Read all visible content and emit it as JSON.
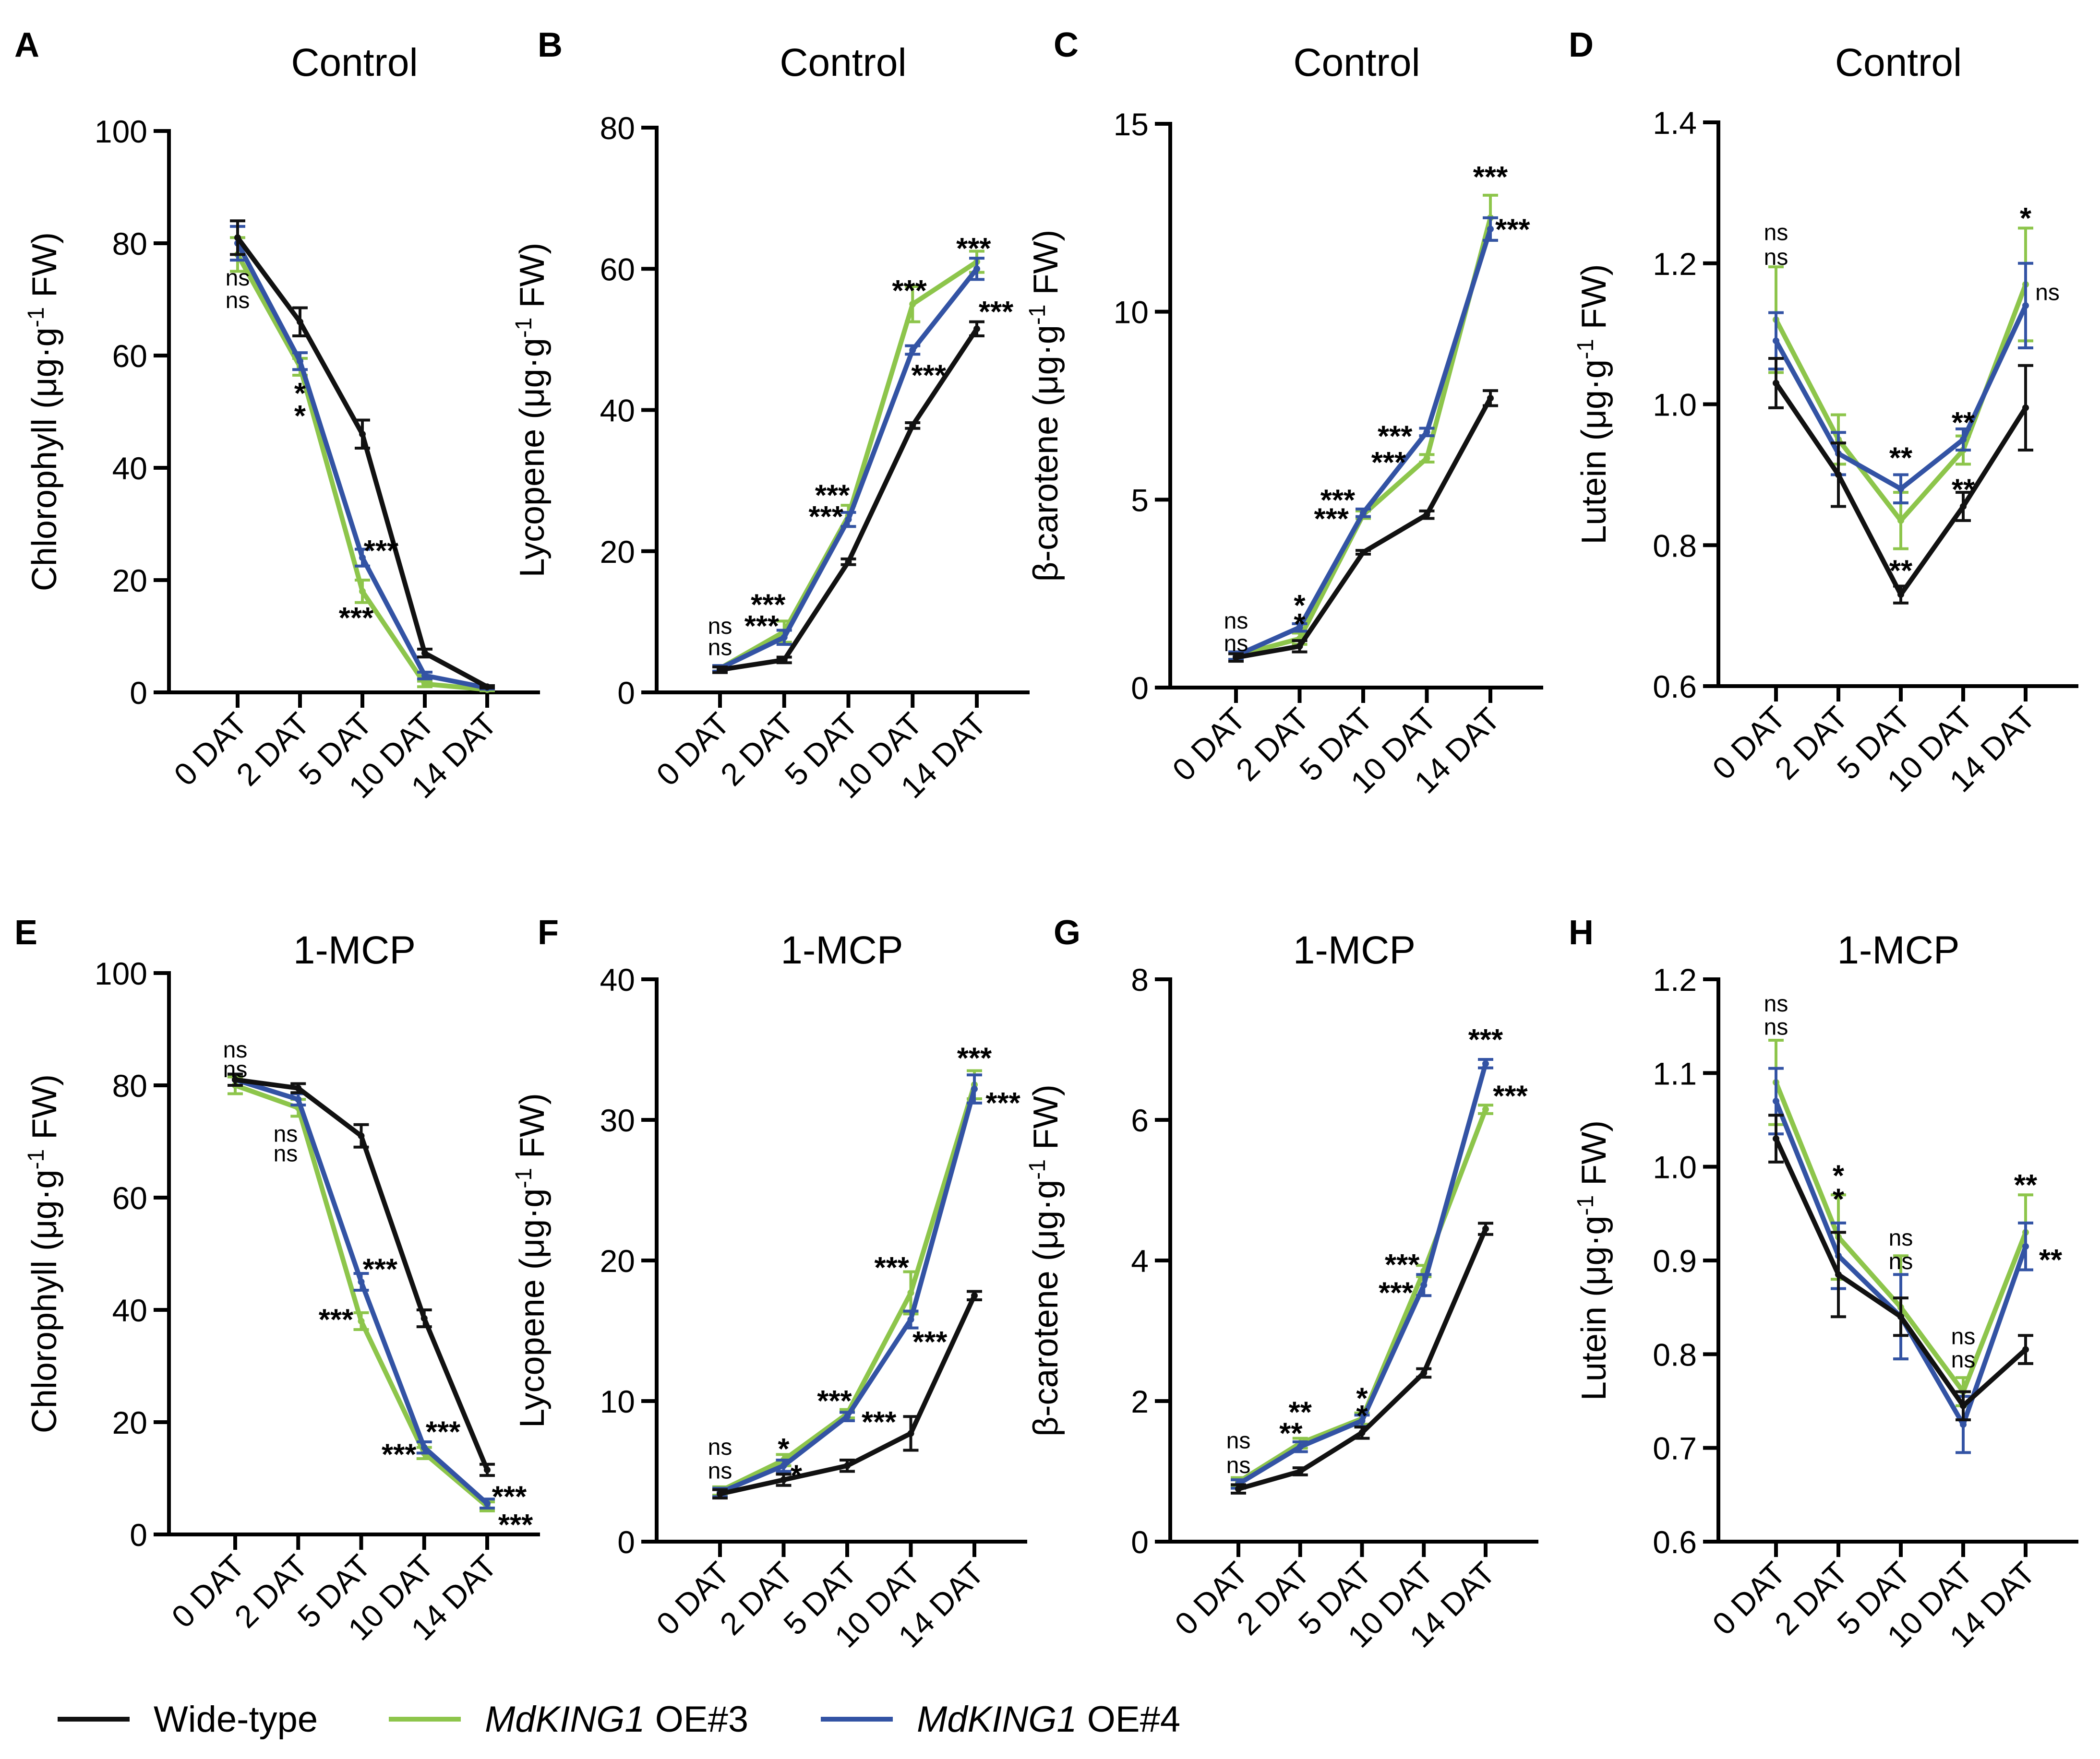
{
  "colors": {
    "wt": "#111111",
    "oe3": "#8dc54b",
    "oe4": "#3353a4"
  },
  "legend": {
    "wt": "Wide-type",
    "oe3_gene": "MdKING1",
    "oe3_suffix": " OE#3",
    "oe4_gene": "MdKING1",
    "oe4_suffix": " OE#4"
  },
  "chart_data": [
    {
      "panel": "A",
      "type": "line",
      "title": "Control",
      "ylabel": "Chlorophyll (μg·g-1 FW)",
      "categories": [
        "0 DAT",
        "2 DAT",
        "5 DAT",
        "10 DAT",
        "14 DAT"
      ],
      "ylim": [
        0,
        100
      ],
      "yticks": [
        0,
        20,
        40,
        60,
        80,
        100
      ],
      "series": [
        {
          "name": "Wide-type",
          "values": [
            81,
            66,
            46,
            7,
            1
          ],
          "err": [
            3,
            2.5,
            2.5,
            0.7,
            0.2
          ]
        },
        {
          "name": "MdKING1 OE#3",
          "values": [
            78,
            58,
            18,
            1.5,
            0.5
          ],
          "err": [
            3,
            1.5,
            2,
            0.5,
            0.2
          ]
        },
        {
          "name": "MdKING1 OE#4",
          "values": [
            80,
            59,
            24,
            3,
            0.8
          ],
          "err": [
            3,
            1.5,
            1.5,
            0.6,
            0.2
          ]
        }
      ],
      "annotations": [
        {
          "text": "ns",
          "x": 0,
          "y": 74
        },
        {
          "text": "ns",
          "x": 0,
          "y": 70
        },
        {
          "text": "*",
          "x": 1,
          "y": 54
        },
        {
          "text": "*",
          "x": 1,
          "y": 50
        },
        {
          "text": "***",
          "x": 2.3,
          "y": 26
        },
        {
          "text": "***",
          "x": 1.9,
          "y": 14
        }
      ]
    },
    {
      "panel": "B",
      "type": "line",
      "title": "Control",
      "ylabel": "Lycopene (μg·g-1 FW)",
      "categories": [
        "0 DAT",
        "2 DAT",
        "5 DAT",
        "10 DAT",
        "14 DAT"
      ],
      "ylim": [
        0,
        80
      ],
      "yticks": [
        0,
        20,
        40,
        60,
        80
      ],
      "series": [
        {
          "name": "Wide-type",
          "values": [
            3.2,
            4.6,
            18.5,
            37.8,
            51.5
          ],
          "err": [
            0.4,
            0.4,
            0.4,
            0.4,
            1
          ]
        },
        {
          "name": "MdKING1 OE#3",
          "values": [
            3.4,
            8.6,
            25,
            55,
            61
          ],
          "err": [
            0.4,
            1.5,
            1.5,
            2.5,
            1.5
          ]
        },
        {
          "name": "MdKING1 OE#4",
          "values": [
            3.4,
            7.8,
            24.5,
            48.5,
            60
          ],
          "err": [
            0.4,
            1,
            1,
            0.6,
            1.5
          ]
        }
      ],
      "annotations": [
        {
          "text": "ns",
          "x": 0,
          "y": 9.5
        },
        {
          "text": "ns",
          "x": 0,
          "y": 6.5
        },
        {
          "text": "***",
          "x": 0.75,
          "y": 13
        },
        {
          "text": "***",
          "x": 0.65,
          "y": 10
        },
        {
          "text": "***",
          "x": 1.75,
          "y": 28.5
        },
        {
          "text": "***",
          "x": 1.65,
          "y": 25.5
        },
        {
          "text": "***",
          "x": 2.95,
          "y": 57.5
        },
        {
          "text": "***",
          "x": 3.25,
          "y": 45.5
        },
        {
          "text": "***",
          "x": 3.95,
          "y": 63.5
        },
        {
          "text": "***",
          "x": 4.3,
          "y": 54.5
        }
      ]
    },
    {
      "panel": "C",
      "type": "line",
      "title": "Control",
      "ylabel": "β-carotene (μg·g-1 FW)",
      "categories": [
        "0 DAT",
        "2 DAT",
        "5 DAT",
        "10 DAT",
        "14 DAT"
      ],
      "ylim": [
        0,
        15
      ],
      "yticks": [
        0,
        5,
        10,
        15
      ],
      "series": [
        {
          "name": "Wide-type",
          "values": [
            0.8,
            1.1,
            3.6,
            4.6,
            7.7
          ],
          "err": [
            0.1,
            0.15,
            0.05,
            0.1,
            0.2
          ]
        },
        {
          "name": "MdKING1 OE#3",
          "values": [
            0.85,
            1.3,
            4.6,
            6.1,
            12.5
          ],
          "err": [
            0.1,
            0.15,
            0.1,
            0.1,
            0.6
          ]
        },
        {
          "name": "MdKING1 OE#4",
          "values": [
            0.85,
            1.6,
            4.65,
            6.8,
            12.2
          ],
          "err": [
            0.1,
            0.1,
            0.1,
            0.1,
            0.3
          ]
        }
      ],
      "annotations": [
        {
          "text": "ns",
          "x": 0,
          "y": 1.8
        },
        {
          "text": "ns",
          "x": 0,
          "y": 1.2
        },
        {
          "text": "*",
          "x": 1,
          "y": 2.3
        },
        {
          "text": "*",
          "x": 1,
          "y": 1.8
        },
        {
          "text": "***",
          "x": 1.6,
          "y": 5.1
        },
        {
          "text": "***",
          "x": 1.5,
          "y": 4.6
        },
        {
          "text": "***",
          "x": 2.5,
          "y": 6.8
        },
        {
          "text": "***",
          "x": 2.4,
          "y": 6.1
        },
        {
          "text": "***",
          "x": 4,
          "y": 13.7
        },
        {
          "text": "***",
          "x": 4.35,
          "y": 12.3
        }
      ]
    },
    {
      "panel": "D",
      "type": "line",
      "title": "Control",
      "ylabel": "Lutein (μg·g-1 FW)",
      "categories": [
        "0 DAT",
        "2 DAT",
        "5 DAT",
        "10 DAT",
        "14 DAT"
      ],
      "ylim": [
        0.6,
        1.4
      ],
      "yticks": [
        0.6,
        0.8,
        1.0,
        1.2,
        1.4
      ],
      "series": [
        {
          "name": "Wide-type",
          "values": [
            1.03,
            0.9,
            0.73,
            0.855,
            0.995
          ],
          "err": [
            0.035,
            0.045,
            0.012,
            0.02,
            0.06
          ]
        },
        {
          "name": "MdKING1 OE#3",
          "values": [
            1.12,
            0.95,
            0.835,
            0.935,
            1.17
          ],
          "err": [
            0.075,
            0.035,
            0.04,
            0.02,
            0.08
          ]
        },
        {
          "name": "MdKING1 OE#4",
          "values": [
            1.09,
            0.93,
            0.88,
            0.95,
            1.14
          ],
          "err": [
            0.04,
            0.03,
            0.02,
            0.015,
            0.06
          ]
        }
      ],
      "annotations": [
        {
          "text": "ns",
          "x": 0,
          "y": 1.245
        },
        {
          "text": "ns",
          "x": 0,
          "y": 1.21
        },
        {
          "text": "**",
          "x": 2,
          "y": 0.93
        },
        {
          "text": "**",
          "x": 2,
          "y": 0.77
        },
        {
          "text": "**",
          "x": 3,
          "y": 0.98
        },
        {
          "text": "**",
          "x": 3,
          "y": 0.885
        },
        {
          "text": "*",
          "x": 4,
          "y": 1.27
        },
        {
          "text": "ns",
          "x": 4.35,
          "y": 1.16
        }
      ]
    },
    {
      "panel": "E",
      "type": "line",
      "title": "1-MCP",
      "ylabel": "Chlorophyll (μg·g-1 FW)",
      "categories": [
        "0 DAT",
        "2 DAT",
        "5 DAT",
        "10 DAT",
        "14 DAT"
      ],
      "ylim": [
        0,
        100
      ],
      "yticks": [
        0,
        20,
        40,
        60,
        80,
        100
      ],
      "series": [
        {
          "name": "Wide-type",
          "values": [
            81,
            79.5,
            71,
            38.5,
            11.5
          ],
          "err": [
            1,
            0.8,
            2,
            1.5,
            1
          ]
        },
        {
          "name": "MdKING1 OE#3",
          "values": [
            80,
            76,
            38,
            14.5,
            5
          ],
          "err": [
            1.5,
            1.5,
            1.5,
            1,
            0.8
          ]
        },
        {
          "name": "MdKING1 OE#4",
          "values": [
            81,
            77.5,
            45,
            15.5,
            5.5
          ],
          "err": [
            1,
            1,
            1.5,
            1,
            0.8
          ]
        }
      ],
      "annotations": [
        {
          "text": "ns",
          "x": 0,
          "y": 86.5
        },
        {
          "text": "ns",
          "x": 0,
          "y": 83
        },
        {
          "text": "ns",
          "x": 0.8,
          "y": 71.5
        },
        {
          "text": "ns",
          "x": 0.8,
          "y": 68
        },
        {
          "text": "***",
          "x": 2.3,
          "y": 48
        },
        {
          "text": "***",
          "x": 1.6,
          "y": 39
        },
        {
          "text": "***",
          "x": 3.3,
          "y": 19
        },
        {
          "text": "***",
          "x": 2.6,
          "y": 15
        },
        {
          "text": "***",
          "x": 4.35,
          "y": 7.5
        },
        {
          "text": "***",
          "x": 4.45,
          "y": 2.5
        }
      ]
    },
    {
      "panel": "F",
      "type": "line",
      "title": "1-MCP",
      "ylabel": "Lycopene (μg·g-1 FW)",
      "categories": [
        "0 DAT",
        "2 DAT",
        "5 DAT",
        "10 DAT",
        "14 DAT"
      ],
      "ylim": [
        0,
        40
      ],
      "yticks": [
        0,
        10,
        20,
        30,
        40
      ],
      "series": [
        {
          "name": "Wide-type",
          "values": [
            3.4,
            4.4,
            5.4,
            7.7,
            17.5
          ],
          "err": [
            0.3,
            0.4,
            0.4,
            1.2,
            0.3
          ]
        },
        {
          "name": "MdKING1 OE#3",
          "values": [
            3.6,
            5.8,
            9.1,
            17.7,
            32.5
          ],
          "err": [
            0.3,
            0.4,
            0.3,
            1.5,
            1
          ]
        },
        {
          "name": "MdKING1 OE#4",
          "values": [
            3.5,
            5.4,
            8.9,
            15.8,
            32.2
          ],
          "err": [
            0.3,
            0.4,
            0.3,
            0.6,
            1
          ]
        }
      ],
      "annotations": [
        {
          "text": "ns",
          "x": 0,
          "y": 6.8
        },
        {
          "text": "ns",
          "x": 0,
          "y": 5.1
        },
        {
          "text": "*",
          "x": 1,
          "y": 6.9
        },
        {
          "text": "*",
          "x": 1.2,
          "y": 5
        },
        {
          "text": "***",
          "x": 1.8,
          "y": 10.3
        },
        {
          "text": "***",
          "x": 2.5,
          "y": 8.8
        },
        {
          "text": "***",
          "x": 2.7,
          "y": 19.8
        },
        {
          "text": "***",
          "x": 3.3,
          "y": 14.5
        },
        {
          "text": "***",
          "x": 4,
          "y": 34.7
        },
        {
          "text": "***",
          "x": 4.45,
          "y": 31.5
        }
      ]
    },
    {
      "panel": "G",
      "type": "line",
      "title": "1-MCP",
      "ylabel": "β-carotene (μg·g-1 FW)",
      "categories": [
        "0 DAT",
        "2 DAT",
        "5 DAT",
        "10 DAT",
        "14 DAT"
      ],
      "ylim": [
        0,
        8
      ],
      "yticks": [
        0,
        2,
        4,
        6,
        8
      ],
      "series": [
        {
          "name": "Wide-type",
          "values": [
            0.75,
            1.0,
            1.55,
            2.4,
            4.45
          ],
          "err": [
            0.06,
            0.05,
            0.08,
            0.06,
            0.08
          ]
        },
        {
          "name": "MdKING1 OE#3",
          "values": [
            0.85,
            1.4,
            1.75,
            3.85,
            6.15
          ],
          "err": [
            0.06,
            0.07,
            0.08,
            0.08,
            0.06
          ]
        },
        {
          "name": "MdKING1 OE#4",
          "values": [
            0.82,
            1.35,
            1.72,
            3.65,
            6.8
          ],
          "err": [
            0.06,
            0.07,
            0.08,
            0.15,
            0.06
          ]
        }
      ],
      "annotations": [
        {
          "text": "ns",
          "x": 0,
          "y": 1.45
        },
        {
          "text": "ns",
          "x": 0,
          "y": 1.1
        },
        {
          "text": "**",
          "x": 1,
          "y": 1.9
        },
        {
          "text": "**",
          "x": 0.85,
          "y": 1.6
        },
        {
          "text": "*",
          "x": 2,
          "y": 2.1
        },
        {
          "text": "*",
          "x": 2,
          "y": 1.85
        },
        {
          "text": "***",
          "x": 2.65,
          "y": 4.0
        },
        {
          "text": "***",
          "x": 2.55,
          "y": 3.6
        },
        {
          "text": "***",
          "x": 4,
          "y": 7.2
        },
        {
          "text": "***",
          "x": 4.4,
          "y": 6.4
        }
      ]
    },
    {
      "panel": "H",
      "type": "line",
      "title": "1-MCP",
      "ylabel": "Lutein (μg·g-1 FW)",
      "categories": [
        "0 DAT",
        "2 DAT",
        "5 DAT",
        "10 DAT",
        "14 DAT"
      ],
      "ylim": [
        0.6,
        1.2
      ],
      "yticks": [
        0.6,
        0.7,
        0.8,
        0.9,
        1.0,
        1.1,
        1.2
      ],
      "series": [
        {
          "name": "Wide-type",
          "values": [
            1.03,
            0.885,
            0.84,
            0.745,
            0.805
          ],
          "err": [
            0.025,
            0.045,
            0.02,
            0.015,
            0.015
          ]
        },
        {
          "name": "MdKING1 OE#3",
          "values": [
            1.09,
            0.925,
            0.85,
            0.76,
            0.93
          ],
          "err": [
            0.045,
            0.045,
            0.055,
            0.015,
            0.04
          ]
        },
        {
          "name": "MdKING1 OE#4",
          "values": [
            1.07,
            0.905,
            0.84,
            0.725,
            0.915
          ],
          "err": [
            0.035,
            0.035,
            0.045,
            0.03,
            0.025
          ]
        }
      ],
      "annotations": [
        {
          "text": "ns",
          "x": 0,
          "y": 1.175
        },
        {
          "text": "ns",
          "x": 0,
          "y": 1.15
        },
        {
          "text": "*",
          "x": 1,
          "y": 0.995
        },
        {
          "text": "*",
          "x": 1,
          "y": 0.97
        },
        {
          "text": "ns",
          "x": 2,
          "y": 0.925
        },
        {
          "text": "ns",
          "x": 2,
          "y": 0.9
        },
        {
          "text": "ns",
          "x": 3,
          "y": 0.82
        },
        {
          "text": "ns",
          "x": 3,
          "y": 0.795
        },
        {
          "text": "**",
          "x": 4,
          "y": 0.985
        },
        {
          "text": "**",
          "x": 4.4,
          "y": 0.905
        }
      ]
    }
  ]
}
